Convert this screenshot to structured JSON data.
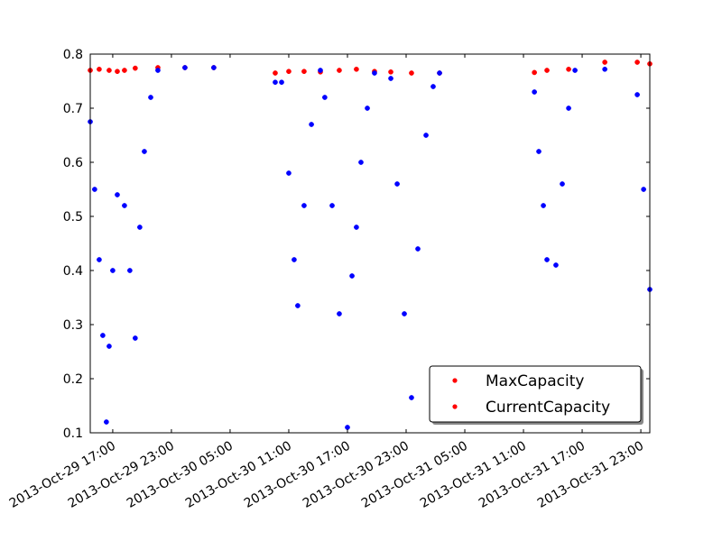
{
  "chart_data": {
    "type": "scatter",
    "xlim": [
      "2013-10-29 14:42",
      "2013-10-31 23:55"
    ],
    "xticks": [
      {
        "value": "2013-10-29 17:00",
        "label": "2013-Oct-29 17:00"
      },
      {
        "value": "2013-10-29 23:00",
        "label": "2013-Oct-29 23:00"
      },
      {
        "value": "2013-10-30 05:00",
        "label": "2013-Oct-30 05:00"
      },
      {
        "value": "2013-10-30 11:00",
        "label": "2013-Oct-30 11:00"
      },
      {
        "value": "2013-10-30 17:00",
        "label": "2013-Oct-30 17:00"
      },
      {
        "value": "2013-10-30 23:00",
        "label": "2013-Oct-30 23:00"
      },
      {
        "value": "2013-10-31 05:00",
        "label": "2013-Oct-31 05:00"
      },
      {
        "value": "2013-10-31 11:00",
        "label": "2013-Oct-31 11:00"
      },
      {
        "value": "2013-10-31 17:00",
        "label": "2013-Oct-31 17:00"
      },
      {
        "value": "2013-10-31 23:00",
        "label": "2013-Oct-31 23:00"
      }
    ],
    "ylim": [
      0.1,
      0.8
    ],
    "yticks": [
      0.1,
      0.2,
      0.3,
      0.4,
      0.5,
      0.6,
      0.7,
      0.8
    ],
    "legend_position": "lower right",
    "legend_marker_color": "#ff0000",
    "series": [
      {
        "name": "MaxCapacity",
        "color": "#ff0000",
        "x": [
          "2013-10-29 14:42",
          "2013-10-29 15:37",
          "2013-10-29 16:38",
          "2013-10-29 17:28",
          "2013-10-29 18:12",
          "2013-10-29 19:18",
          "2013-10-29 21:37",
          "2013-10-30 00:23",
          "2013-10-30 03:20",
          "2013-10-30 09:37",
          "2013-10-30 11:00",
          "2013-10-30 12:34",
          "2013-10-30 14:14",
          "2013-10-30 16:10",
          "2013-10-30 17:55",
          "2013-10-30 19:46",
          "2013-10-30 21:26",
          "2013-10-30 23:33",
          "2013-10-31 02:25",
          "2013-10-31 12:07",
          "2013-10-31 13:24",
          "2013-10-31 15:37",
          "2013-10-31 19:19",
          "2013-10-31 22:38",
          "2013-10-31 23:55"
        ],
        "values": [
          0.77,
          0.772,
          0.77,
          0.768,
          0.77,
          0.774,
          0.775,
          0.775,
          0.775,
          0.765,
          0.768,
          0.768,
          0.767,
          0.77,
          0.772,
          0.768,
          0.767,
          0.765,
          0.765,
          0.766,
          0.77,
          0.772,
          0.785,
          0.785,
          0.782
        ]
      },
      {
        "name": "CurrentCapacity",
        "color": "#0000ff",
        "x": [
          "2013-10-29 14:42",
          "2013-10-29 15:09",
          "2013-10-29 15:37",
          "2013-10-29 15:59",
          "2013-10-29 16:21",
          "2013-10-29 16:38",
          "2013-10-29 17:00",
          "2013-10-29 17:28",
          "2013-10-29 18:12",
          "2013-10-29 18:45",
          "2013-10-29 19:18",
          "2013-10-29 19:46",
          "2013-10-29 20:14",
          "2013-10-29 20:53",
          "2013-10-29 21:37",
          "2013-10-30 00:23",
          "2013-10-30 03:20",
          "2013-10-30 09:37",
          "2013-10-30 10:16",
          "2013-10-30 11:00",
          "2013-10-30 11:33",
          "2013-10-30 11:55",
          "2013-10-30 12:34",
          "2013-10-30 13:19",
          "2013-10-30 14:14",
          "2013-10-30 14:41",
          "2013-10-30 15:26",
          "2013-10-30 16:10",
          "2013-10-30 17:00",
          "2013-10-30 17:28",
          "2013-10-30 17:55",
          "2013-10-30 18:23",
          "2013-10-30 19:02",
          "2013-10-30 19:46",
          "2013-10-30 21:26",
          "2013-10-30 22:05",
          "2013-10-30 22:49",
          "2013-10-30 23:33",
          "2013-10-31 00:12",
          "2013-10-31 01:02",
          "2013-10-31 01:46",
          "2013-10-31 02:25",
          "2013-10-31 12:07",
          "2013-10-31 12:34",
          "2013-10-31 13:02",
          "2013-10-31 13:24",
          "2013-10-31 14:19",
          "2013-10-31 14:58",
          "2013-10-31 15:37",
          "2013-10-31 16:16",
          "2013-10-31 19:19",
          "2013-10-31 22:38",
          "2013-10-31 23:17",
          "2013-10-31 23:55"
        ],
        "values": [
          0.675,
          0.55,
          0.42,
          0.28,
          0.12,
          0.26,
          0.4,
          0.54,
          0.52,
          0.4,
          0.275,
          0.48,
          0.62,
          0.72,
          0.77,
          0.775,
          0.775,
          0.748,
          0.748,
          0.58,
          0.42,
          0.335,
          0.52,
          0.67,
          0.77,
          0.72,
          0.52,
          0.32,
          0.11,
          0.39,
          0.48,
          0.6,
          0.7,
          0.765,
          0.755,
          0.56,
          0.32,
          0.165,
          0.44,
          0.65,
          0.74,
          0.765,
          0.73,
          0.62,
          0.52,
          0.42,
          0.41,
          0.56,
          0.7,
          0.77,
          0.772,
          0.725,
          0.55,
          0.365
        ]
      }
    ]
  }
}
